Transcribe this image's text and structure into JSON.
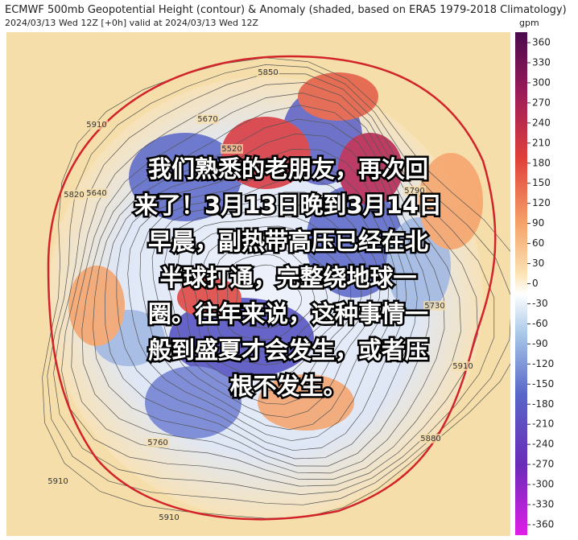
{
  "header": {
    "title": "ECMWF 500mb Geopotential Height (contour) & Anomaly (shaded, based on ERA5 1979-2018 Climatology)",
    "subtitle": "2024/03/13 Wed 12Z [+0h] valid at 2024/03/13 Wed 12Z"
  },
  "colorbar": {
    "unit": "gpm",
    "ticks": [
      360,
      330,
      300,
      270,
      240,
      210,
      180,
      150,
      120,
      90,
      60,
      30,
      0,
      -30,
      -60,
      -90,
      -120,
      -150,
      -180,
      -210,
      -240,
      -270,
      -300,
      -330,
      -360
    ]
  },
  "map": {
    "contour_labels": [
      5850,
      5910,
      5670,
      5520,
      5820,
      5640,
      5760,
      5910,
      5910,
      5880,
      5910,
      5790,
      5730
    ]
  },
  "caption": {
    "lines": [
      "我们熟悉的老朋友，再次回",
      "来了！3月13日晚到3月14日",
      "早晨，副热带高压已经在北",
      "半球打通，完整绕地球一",
      "圈。往年来说，这种事情一",
      "般到盛夏才会发生，或者压",
      "根不发生。"
    ]
  }
}
